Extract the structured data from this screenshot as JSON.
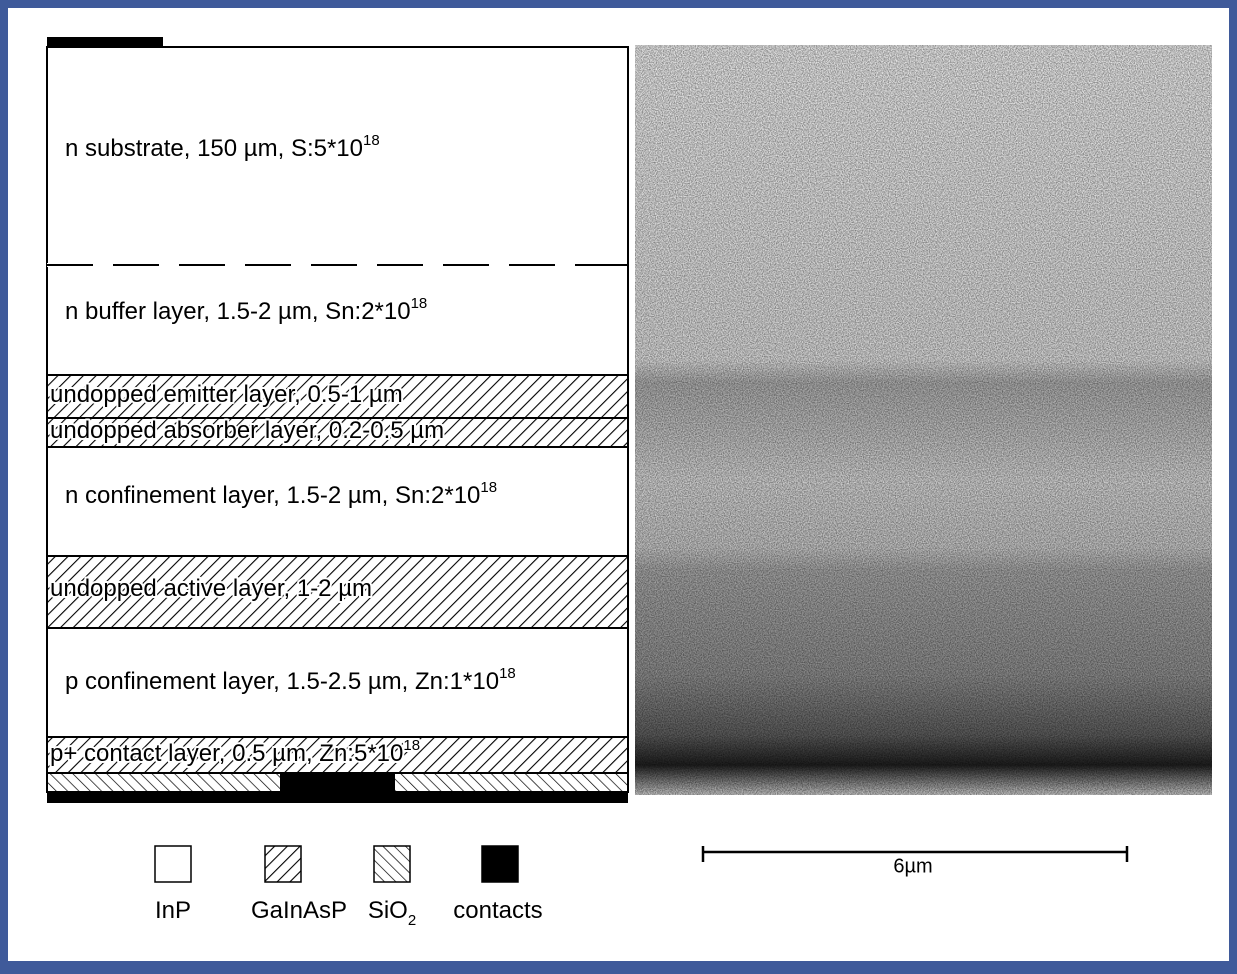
{
  "layers": [
    {
      "label": "n substrate, 150 µm, S:5*10",
      "sup": "18"
    },
    {
      "label": "n buffer layer, 1.5-2 µm, Sn:2*10",
      "sup": "18"
    },
    {
      "label": "undopped emitter layer, 0.5-1 µm"
    },
    {
      "label": "undopped absorber layer, 0.2-0.5 µm"
    },
    {
      "label": "n confinement layer, 1.5-2 µm, Sn:2*10",
      "sup": "18"
    },
    {
      "label": "undopped active layer, 1-2 µm"
    },
    {
      "label": "p confinement layer, 1.5-2.5 µm, Zn:1*10",
      "sup": "18"
    },
    {
      "label": "p+ contact layer, 0.5 µm, Zn:5*10",
      "sup": "18"
    }
  ],
  "legend": [
    {
      "label": "InP"
    },
    {
      "label": "GaInAsP"
    },
    {
      "label": "SiO",
      "sub": "2"
    },
    {
      "label": "contacts"
    }
  ],
  "scale_bar": {
    "label": "6µm"
  }
}
